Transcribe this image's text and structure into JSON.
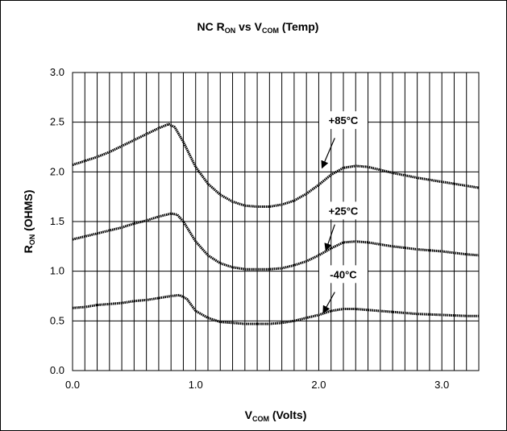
{
  "chart_data": {
    "type": "line",
    "title": {
      "main": "NC R",
      "sub1": "ON",
      "mid": " vs V",
      "sub2": "COM",
      "tail": " (Temp)"
    },
    "xlabel": {
      "main": "V",
      "sub": "COM",
      "tail": " (Volts)"
    },
    "ylabel": {
      "main": "R",
      "sub": "ON",
      "tail": " (OHMS)"
    },
    "xlim": [
      0,
      3.3
    ],
    "ylim": [
      0,
      3.0
    ],
    "x_ticks": [
      0.0,
      1.0,
      2.0,
      3.0
    ],
    "x_tick_labels": [
      "0.0",
      "1.0",
      "2.0",
      "3.0"
    ],
    "x_minor_step": 0.1,
    "y_ticks": [
      0.0,
      0.5,
      1.0,
      1.5,
      2.0,
      2.5,
      3.0
    ],
    "y_tick_labels": [
      "0.0",
      "0.5",
      "1.0",
      "1.5",
      "2.0",
      "2.5",
      "3.0"
    ],
    "grid": true,
    "series": [
      {
        "name": "+85°C",
        "x": [
          0.0,
          0.1,
          0.2,
          0.3,
          0.4,
          0.5,
          0.6,
          0.7,
          0.78,
          0.83,
          0.9,
          1.0,
          1.1,
          1.2,
          1.3,
          1.4,
          1.5,
          1.6,
          1.7,
          1.8,
          1.9,
          2.0,
          2.1,
          2.2,
          2.3,
          2.4,
          2.5,
          2.6,
          2.8,
          3.0,
          3.2,
          3.3
        ],
        "values": [
          2.07,
          2.11,
          2.15,
          2.2,
          2.26,
          2.32,
          2.38,
          2.44,
          2.48,
          2.45,
          2.3,
          2.05,
          1.88,
          1.77,
          1.7,
          1.66,
          1.65,
          1.65,
          1.67,
          1.71,
          1.78,
          1.87,
          1.97,
          2.04,
          2.06,
          2.05,
          2.02,
          1.99,
          1.94,
          1.9,
          1.86,
          1.84
        ]
      },
      {
        "name": "+25°C",
        "x": [
          0.0,
          0.1,
          0.2,
          0.3,
          0.4,
          0.5,
          0.6,
          0.7,
          0.8,
          0.85,
          0.9,
          1.0,
          1.1,
          1.2,
          1.3,
          1.4,
          1.5,
          1.6,
          1.7,
          1.8,
          1.9,
          2.0,
          2.1,
          2.2,
          2.3,
          2.4,
          2.5,
          2.6,
          2.8,
          3.0,
          3.2,
          3.3
        ],
        "values": [
          1.32,
          1.35,
          1.38,
          1.41,
          1.44,
          1.48,
          1.51,
          1.55,
          1.58,
          1.57,
          1.5,
          1.3,
          1.16,
          1.08,
          1.04,
          1.02,
          1.02,
          1.02,
          1.03,
          1.06,
          1.1,
          1.16,
          1.23,
          1.29,
          1.3,
          1.29,
          1.27,
          1.25,
          1.22,
          1.2,
          1.17,
          1.16
        ]
      },
      {
        "name": "-40°C",
        "x": [
          0.0,
          0.1,
          0.2,
          0.3,
          0.4,
          0.5,
          0.6,
          0.7,
          0.8,
          0.87,
          0.93,
          1.0,
          1.1,
          1.2,
          1.3,
          1.4,
          1.5,
          1.6,
          1.7,
          1.8,
          1.9,
          2.0,
          2.1,
          2.2,
          2.3,
          2.4,
          2.5,
          2.6,
          2.8,
          3.0,
          3.2,
          3.3
        ],
        "values": [
          0.63,
          0.64,
          0.66,
          0.67,
          0.68,
          0.7,
          0.71,
          0.73,
          0.75,
          0.76,
          0.72,
          0.6,
          0.53,
          0.49,
          0.48,
          0.47,
          0.47,
          0.47,
          0.48,
          0.5,
          0.53,
          0.56,
          0.6,
          0.62,
          0.62,
          0.61,
          0.6,
          0.59,
          0.57,
          0.56,
          0.55,
          0.55
        ]
      }
    ],
    "annotations": [
      {
        "series": 0,
        "text": "+85°C",
        "label_at": [
          2.2,
          2.48
        ],
        "arrow_from": [
          2.13,
          2.34
        ],
        "arrow_to": [
          2.03,
          2.05
        ]
      },
      {
        "series": 1,
        "text": "+25°C",
        "label_at": [
          2.2,
          1.57
        ],
        "arrow_from": [
          2.13,
          1.47
        ],
        "arrow_to": [
          2.06,
          1.22
        ]
      },
      {
        "series": 2,
        "text": "-40°C",
        "label_at": [
          2.2,
          0.93
        ],
        "arrow_from": [
          2.13,
          0.79
        ],
        "arrow_to": [
          2.04,
          0.59
        ]
      }
    ]
  }
}
